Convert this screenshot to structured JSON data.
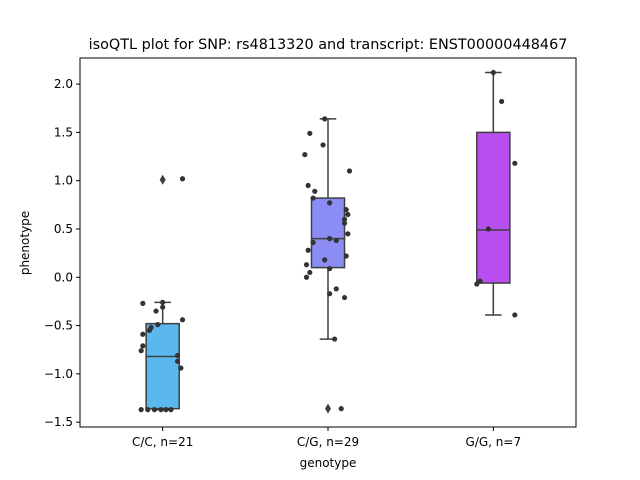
{
  "chart_data": {
    "type": "box",
    "title": "isoQTL plot for SNP: rs4813320 and transcript: ENST00000448467",
    "xlabel": "genotype",
    "ylabel": "phenotype",
    "ylim": [
      -1.55,
      2.27
    ],
    "yticks": [
      -1.5,
      -1.0,
      -0.5,
      0.0,
      0.5,
      1.0,
      1.5,
      2.0
    ],
    "ytick_labels": [
      "−1.5",
      "−1.0",
      "−0.5",
      "0.0",
      "0.5",
      "1.0",
      "1.5",
      "2.0"
    ],
    "categories": [
      "C/C, n=21",
      "C/G, n=29",
      "G/G, n=7"
    ],
    "grid": false,
    "boxes": [
      {
        "category": "C/C, n=21",
        "color": "#5bb8ee",
        "q1": -1.36,
        "median": -0.82,
        "q3": -0.48,
        "whisker_low": -1.37,
        "whisker_high": -0.26,
        "outliers": [
          1.01
        ]
      },
      {
        "category": "C/G, n=29",
        "color": "#8c8cf5",
        "q1": 0.1,
        "median": 0.4,
        "q3": 0.82,
        "whisker_low": -0.64,
        "whisker_high": 1.64,
        "outliers": [
          -1.36
        ]
      },
      {
        "category": "G/G, n=7",
        "color": "#b94ff0",
        "q1": -0.06,
        "median": 0.49,
        "q3": 1.5,
        "whisker_low": -0.39,
        "whisker_high": 2.12,
        "outliers": []
      }
    ],
    "points": [
      [
        {
          "x": 0.12,
          "y": 1.02
        },
        {
          "x": 0.0,
          "y": -0.26
        },
        {
          "x": -0.12,
          "y": -0.27
        },
        {
          "x": 0.0,
          "y": -0.31
        },
        {
          "x": -0.04,
          "y": -0.35
        },
        {
          "x": 0.12,
          "y": -0.44
        },
        {
          "x": -0.03,
          "y": -0.49
        },
        {
          "x": -0.07,
          "y": -0.52
        },
        {
          "x": -0.08,
          "y": -0.55
        },
        {
          "x": -0.12,
          "y": -0.59
        },
        {
          "x": -0.12,
          "y": -0.71
        },
        {
          "x": -0.13,
          "y": -0.76
        },
        {
          "x": 0.09,
          "y": -0.81
        },
        {
          "x": 0.09,
          "y": -0.87
        },
        {
          "x": 0.11,
          "y": -0.94
        },
        {
          "x": -0.13,
          "y": -1.37
        },
        {
          "x": -0.09,
          "y": -1.37
        },
        {
          "x": -0.05,
          "y": -1.37
        },
        {
          "x": -0.01,
          "y": -1.37
        },
        {
          "x": 0.02,
          "y": -1.37
        },
        {
          "x": 0.05,
          "y": -1.37
        }
      ],
      [
        {
          "x": -0.02,
          "y": 1.64
        },
        {
          "x": -0.11,
          "y": 1.49
        },
        {
          "x": -0.03,
          "y": 1.37
        },
        {
          "x": -0.14,
          "y": 1.27
        },
        {
          "x": 0.13,
          "y": 1.1
        },
        {
          "x": -0.12,
          "y": 0.95
        },
        {
          "x": -0.08,
          "y": 0.89
        },
        {
          "x": -0.09,
          "y": 0.82
        },
        {
          "x": 0.01,
          "y": 0.77
        },
        {
          "x": 0.11,
          "y": 0.7
        },
        {
          "x": 0.12,
          "y": 0.65
        },
        {
          "x": 0.1,
          "y": 0.6
        },
        {
          "x": 0.1,
          "y": 0.56
        },
        {
          "x": 0.12,
          "y": 0.45
        },
        {
          "x": 0.01,
          "y": 0.4
        },
        {
          "x": 0.05,
          "y": 0.38
        },
        {
          "x": -0.09,
          "y": 0.36
        },
        {
          "x": -0.12,
          "y": 0.28
        },
        {
          "x": 0.11,
          "y": 0.22
        },
        {
          "x": -0.02,
          "y": 0.18
        },
        {
          "x": -0.13,
          "y": 0.13
        },
        {
          "x": 0.01,
          "y": 0.09
        },
        {
          "x": -0.11,
          "y": 0.05
        },
        {
          "x": -0.13,
          "y": 0.0
        },
        {
          "x": 0.05,
          "y": -0.12
        },
        {
          "x": 0.01,
          "y": -0.17
        },
        {
          "x": 0.1,
          "y": -0.21
        },
        {
          "x": 0.04,
          "y": -0.64
        },
        {
          "x": 0.08,
          "y": -1.36
        }
      ],
      [
        {
          "x": 0.0,
          "y": 2.12
        },
        {
          "x": 0.05,
          "y": 1.82
        },
        {
          "x": 0.13,
          "y": 1.18
        },
        {
          "x": -0.03,
          "y": 0.5
        },
        {
          "x": -0.08,
          "y": -0.04
        },
        {
          "x": -0.1,
          "y": -0.07
        },
        {
          "x": 0.13,
          "y": -0.39
        }
      ]
    ]
  }
}
